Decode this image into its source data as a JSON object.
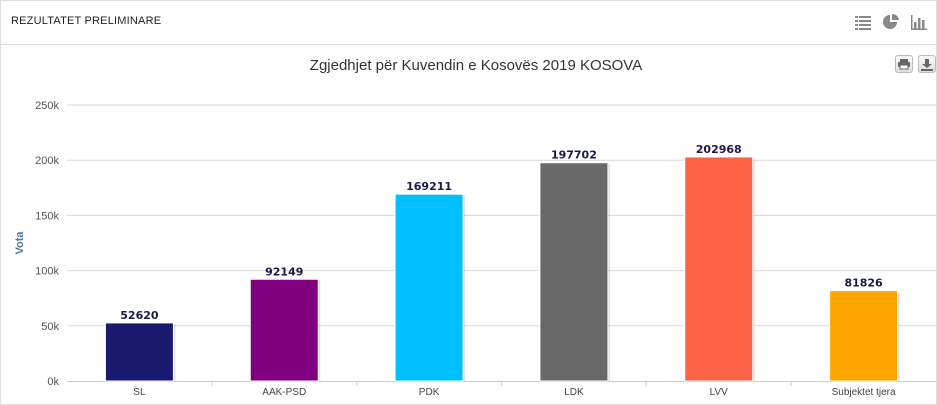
{
  "header": {
    "title": "REZULTATET PRELIMINARE",
    "icons": [
      "list-icon",
      "pie-chart-icon",
      "bar-chart-icon"
    ]
  },
  "export_icons": [
    "print-icon",
    "download-icon"
  ],
  "chart_data": {
    "type": "bar",
    "title": "Zgjedhjet për Kuvendin e Kosovës 2019 KOSOVA",
    "xlabel": "",
    "ylabel": "Vota",
    "ylim": [
      0,
      250000
    ],
    "yticks": [
      0,
      50000,
      100000,
      150000,
      200000,
      250000
    ],
    "ytick_labels": [
      "0k",
      "50k",
      "100k",
      "150k",
      "200k",
      "250k"
    ],
    "grid": true,
    "categories": [
      "SL",
      "AAK-PSD",
      "PDK",
      "LDK",
      "LVV",
      "Subjektet tjera"
    ],
    "values": [
      52620,
      92149,
      169211,
      197702,
      202968,
      81826
    ],
    "colors": [
      "#191970",
      "#800080",
      "#00BFFF",
      "#696969",
      "#FF6347",
      "#FFA500"
    ]
  }
}
